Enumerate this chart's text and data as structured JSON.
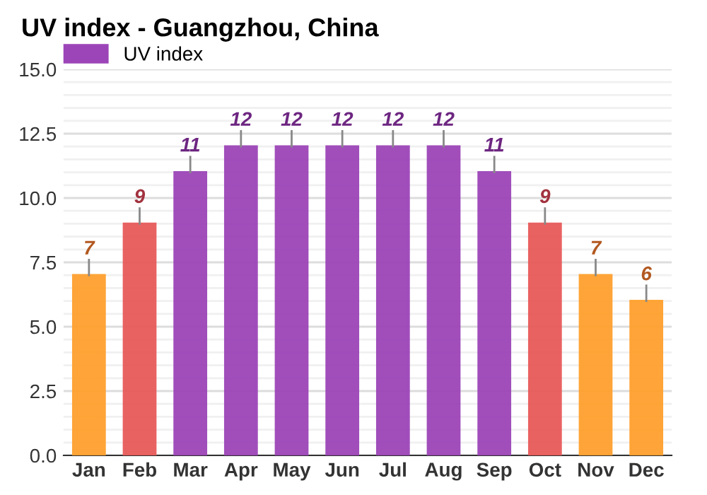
{
  "chart_data": {
    "type": "bar",
    "title": "UV index - Guangzhou, China",
    "categories": [
      "Jan",
      "Feb",
      "Mar",
      "Apr",
      "May",
      "Jun",
      "Jul",
      "Aug",
      "Sep",
      "Oct",
      "Nov",
      "Dec"
    ],
    "series": [
      {
        "name": "UV index",
        "color": "#9c45b8",
        "values": [
          7,
          9,
          11,
          12,
          12,
          12,
          12,
          12,
          11,
          9,
          7,
          6
        ],
        "colors": [
          "#ffa02e",
          "#e85a5a",
          "#9c45b8",
          "#9c45b8",
          "#9c45b8",
          "#9c45b8",
          "#9c45b8",
          "#9c45b8",
          "#9c45b8",
          "#e85a5a",
          "#ffa02e",
          "#ffa02e"
        ]
      }
    ],
    "ylim": [
      0,
      15
    ],
    "yticks": [
      {
        "value": 0,
        "label": "0.0"
      },
      2.5,
      {
        "value": 5,
        "label": "5.0"
      },
      7.5,
      {
        "value": 10,
        "label": "10.0"
      },
      12.5,
      {
        "value": 15,
        "label": "15.0"
      }
    ],
    "grid": "y",
    "legend": "top left",
    "data_labels": true
  }
}
